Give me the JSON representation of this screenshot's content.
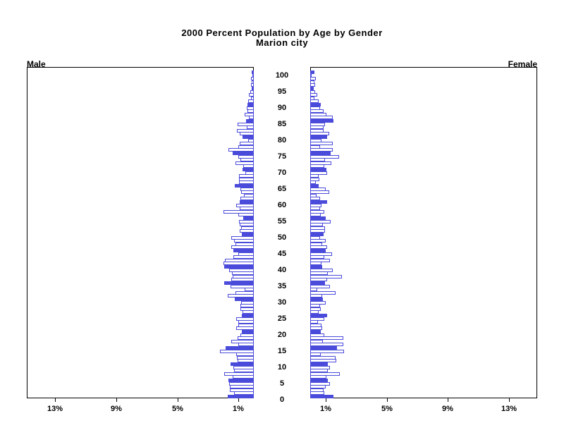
{
  "title": {
    "line1": "2000 Percent Population by Age by Gender",
    "line2": "Marion city"
  },
  "panel_labels": {
    "left": "Male",
    "right": "Female"
  },
  "colors": {
    "bar_blue": "#4b4bdb",
    "axis_black": "#000000",
    "hollow_fill": "#ffffff"
  },
  "chart_data": {
    "type": "bar",
    "subtype": "population-pyramid",
    "title": "2000 Percent Population by Age by Gender",
    "subtitle": "Marion city",
    "unit": "percent of population",
    "orientation": "horizontal, male bars grow left, female bars grow right",
    "age_range": [
      0,
      100
    ],
    "age_axis_tick_interval": 5,
    "age_axis_ticks": [
      0,
      5,
      10,
      15,
      20,
      25,
      30,
      35,
      40,
      45,
      50,
      55,
      60,
      65,
      70,
      75,
      80,
      85,
      90,
      95,
      100
    ],
    "x_tick_values": [
      1,
      5,
      9,
      13
    ],
    "x_tick_labels_left": [
      "13%",
      "9%",
      "5%",
      "1%"
    ],
    "x_tick_labels_right": [
      "1%",
      "5%",
      "9%",
      "13%"
    ],
    "xlim": [
      0,
      14.8
    ],
    "grid": false,
    "legend": false,
    "filled_bar_rule": "bars for ages divisible by 5 are solid blue; other ages are white with blue outline",
    "series": [
      {
        "name": "Male",
        "values": [
          1.69,
          1.3,
          1.55,
          1.55,
          1.6,
          1.65,
          1.4,
          1.92,
          1.28,
          1.34,
          1.5,
          1.05,
          1.1,
          1.15,
          2.2,
          1.85,
          1.0,
          1.49,
          1.08,
          0.88,
          0.77,
          1.15,
          1.03,
          1.03,
          1.15,
          0.8,
          0.72,
          0.89,
          0.89,
          0.85,
          1.23,
          1.69,
          1.18,
          0.62,
          1.54,
          1.92,
          1.46,
          1.38,
          1.42,
          1.62,
          1.95,
          2.0,
          1.89,
          1.34,
          1.03,
          1.35,
          1.46,
          1.18,
          1.28,
          1.46,
          0.8,
          0.92,
          0.85,
          0.92,
          0.97,
          0.69,
          1.03,
          2.0,
          0.92,
          1.15,
          0.92,
          0.88,
          0.66,
          0.82,
          0.88,
          1.23,
          0.97,
          0.95,
          0.97,
          0.54,
          0.72,
          0.69,
          1.18,
          0.88,
          1.0,
          1.38,
          1.65,
          1.03,
          0.92,
          0.35,
          0.72,
          0.92,
          1.12,
          0.45,
          1.08,
          0.49,
          0.34,
          0.58,
          0.43,
          0.46,
          0.43,
          0.38,
          0.18,
          0.3,
          0.23,
          0.15,
          0.18,
          0.12,
          0.18,
          0.05,
          0.15
        ]
      },
      {
        "name": "Female",
        "values": [
          1.5,
          0.91,
          0.88,
          1.03,
          1.31,
          1.15,
          1.08,
          1.92,
          1.15,
          1.31,
          1.15,
          1.72,
          1.65,
          0.69,
          2.23,
          1.77,
          2.18,
          0.85,
          2.18,
          0.91,
          0.69,
          0.8,
          0.75,
          0.49,
          0.91,
          1.11,
          0.54,
          0.69,
          0.65,
          1.03,
          0.85,
          0.8,
          1.65,
          0.45,
          1.31,
          0.95,
          1.11,
          2.08,
          1.15,
          1.46,
          0.8,
          0.72,
          1.29,
          0.91,
          1.42,
          1.0,
          1.11,
          0.8,
          1.03,
          0.65,
          0.88,
          0.95,
          0.95,
          0.85,
          1.34,
          1.03,
          0.7,
          0.91,
          0.65,
          0.75,
          1.1,
          0.65,
          0.42,
          1.26,
          1.03,
          0.54,
          0.38,
          0.6,
          0.54,
          1.11,
          1.08,
          0.91,
          1.38,
          0.95,
          1.88,
          1.34,
          1.46,
          0.65,
          1.46,
          0.72,
          1.1,
          1.26,
          0.88,
          0.88,
          0.95,
          1.52,
          1.46,
          1.06,
          0.88,
          0.65,
          0.7,
          0.54,
          0.26,
          0.45,
          0.34,
          0.25,
          0.34,
          0.26,
          0.38,
          0.1,
          0.26
        ]
      }
    ]
  }
}
